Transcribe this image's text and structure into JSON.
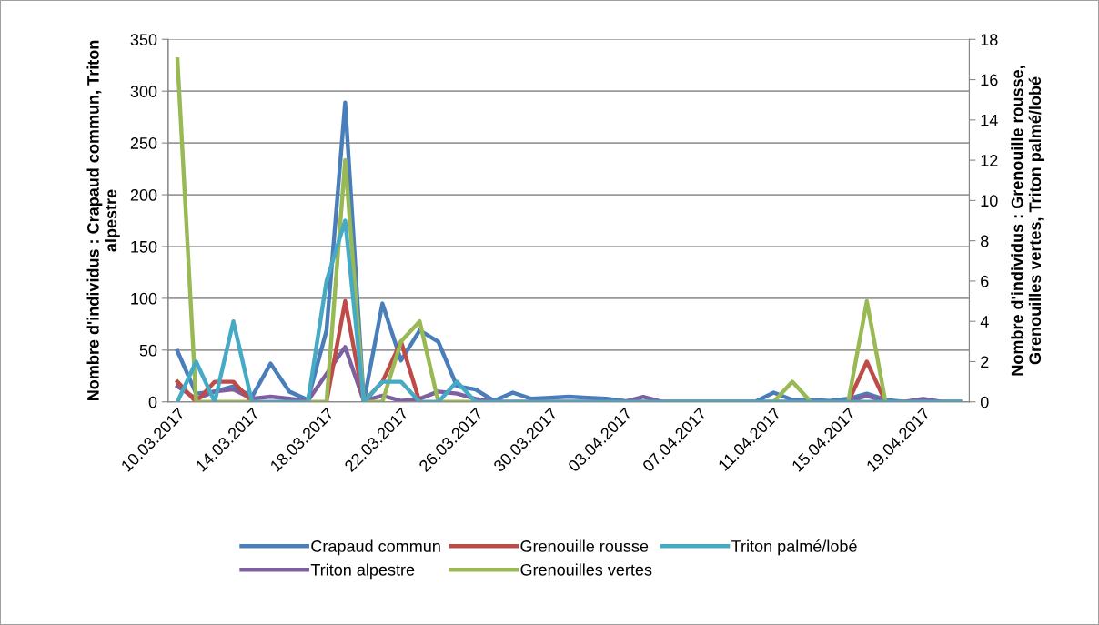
{
  "chart_data": {
    "type": "line",
    "categories": [
      "10.03.2017",
      null,
      null,
      null,
      "14.03.2017",
      null,
      null,
      null,
      "18.03.2017",
      null,
      null,
      null,
      "22.03.2017",
      null,
      null,
      null,
      "26.03.2017",
      null,
      null,
      null,
      "30.03.2017",
      null,
      null,
      null,
      "03.04.2017",
      null,
      null,
      null,
      "07.04.2017",
      null,
      null,
      null,
      "11.04.2017",
      null,
      null,
      null,
      "15.04.2017",
      null,
      null,
      null,
      "19.04.2017",
      null,
      null
    ],
    "ylabel": "Nombre d'individus : Crapaud commun, Triton\nalpestre",
    "y2label": "Nombre d'individus : Grenouille rousse,\nGrenouilles vertes, Triton palmé/lobé",
    "ylim": [
      0,
      350
    ],
    "yticks": [
      0,
      50,
      100,
      150,
      200,
      250,
      300,
      350
    ],
    "y2lim": [
      0,
      18
    ],
    "y2ticks": [
      0,
      2,
      4,
      6,
      8,
      10,
      12,
      14,
      16,
      18
    ],
    "grid": "y",
    "legend": "bottom",
    "marker": "none",
    "line_style": "solid",
    "series": [
      {
        "name": "Crapaud commun",
        "color": "#4a7ebb",
        "values": [
          49,
          8,
          10,
          15,
          5,
          37,
          10,
          2,
          69,
          289,
          0,
          95,
          40,
          69,
          58,
          15,
          12,
          1,
          9,
          3,
          4,
          5,
          4,
          3,
          1,
          0,
          0,
          0,
          0,
          0,
          0,
          0,
          9,
          2,
          2,
          1,
          3,
          8,
          2,
          0,
          1,
          0,
          0
        ]
      },
      {
        "name": "Triton alpestre",
        "color": "#7d60a0",
        "values": [
          15,
          3,
          10,
          12,
          3,
          5,
          3,
          1,
          27,
          53,
          1,
          6,
          1,
          3,
          10,
          8,
          3,
          0,
          0,
          0,
          0,
          0,
          0,
          0,
          0,
          5,
          0,
          0,
          0,
          0,
          0,
          0,
          0,
          0,
          0,
          0,
          0,
          6,
          0,
          0,
          3,
          0,
          0
        ]
      },
      {
        "name": "Grenouille rousse",
        "color": "#be4b48",
        "axis": "y2",
        "values": [
          1,
          0,
          1,
          1,
          0,
          null,
          null,
          null,
          0,
          5,
          0,
          1,
          3,
          0,
          null,
          null,
          null,
          null,
          null,
          null,
          null,
          null,
          null,
          null,
          null,
          null,
          null,
          null,
          null,
          null,
          null,
          null,
          null,
          null,
          null,
          null,
          0,
          2,
          0,
          null,
          null,
          null,
          null
        ]
      },
      {
        "name": "Grenouilles vertes",
        "color": "#98b954",
        "axis": "y2",
        "values": [
          17,
          0,
          0,
          0,
          0,
          null,
          null,
          0,
          0,
          12,
          0,
          0,
          3,
          4,
          0,
          0,
          0,
          null,
          null,
          null,
          null,
          null,
          null,
          null,
          null,
          null,
          null,
          null,
          null,
          null,
          null,
          null,
          0,
          1,
          0,
          null,
          0,
          5,
          0,
          null,
          null,
          null,
          null
        ]
      },
      {
        "name": "Triton palmé/lobé",
        "color": "#46aac5",
        "axis": "y2",
        "values": [
          0,
          2,
          0,
          4,
          0,
          0,
          0,
          0,
          6,
          9,
          0,
          1,
          1,
          0,
          0,
          1,
          0,
          0,
          0,
          0,
          0,
          0,
          0,
          0,
          0,
          0,
          0,
          0,
          0,
          0,
          0,
          0,
          0,
          0,
          0,
          0,
          0,
          0,
          0,
          0,
          0,
          0,
          0
        ]
      }
    ]
  }
}
